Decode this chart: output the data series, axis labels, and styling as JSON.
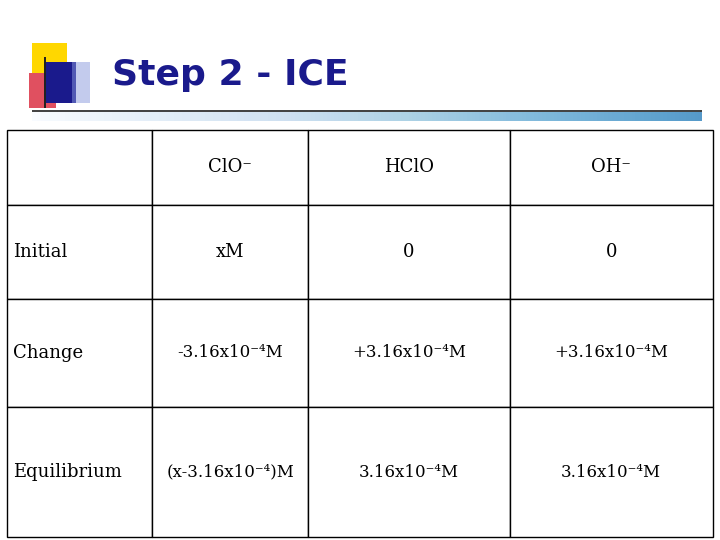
{
  "title": "Step 2 - ICE",
  "title_color": "#1a1a8c",
  "title_fontsize": 26,
  "background_color": "#ffffff",
  "cell_data": [
    [
      "",
      "ClO⁻",
      "HClO",
      "OH⁻"
    ],
    [
      "Initial",
      "xM",
      "0",
      "0"
    ],
    [
      "Change",
      "-3.16x10⁻⁴M",
      "+3.16x10⁻⁴M",
      "+3.16x10⁻⁴M"
    ],
    [
      "Equilibrium",
      "(x-3.16x10⁻⁴)M",
      "3.16x10⁻⁴M",
      "3.16x10⁻⁴M"
    ]
  ],
  "logo": {
    "yellow": "#FFD700",
    "pink": "#E05060",
    "blue_dark": "#1a1a8c",
    "blue_light": "#8899DD"
  },
  "table_font_size": 13,
  "table_font_family": "DejaVu Serif"
}
